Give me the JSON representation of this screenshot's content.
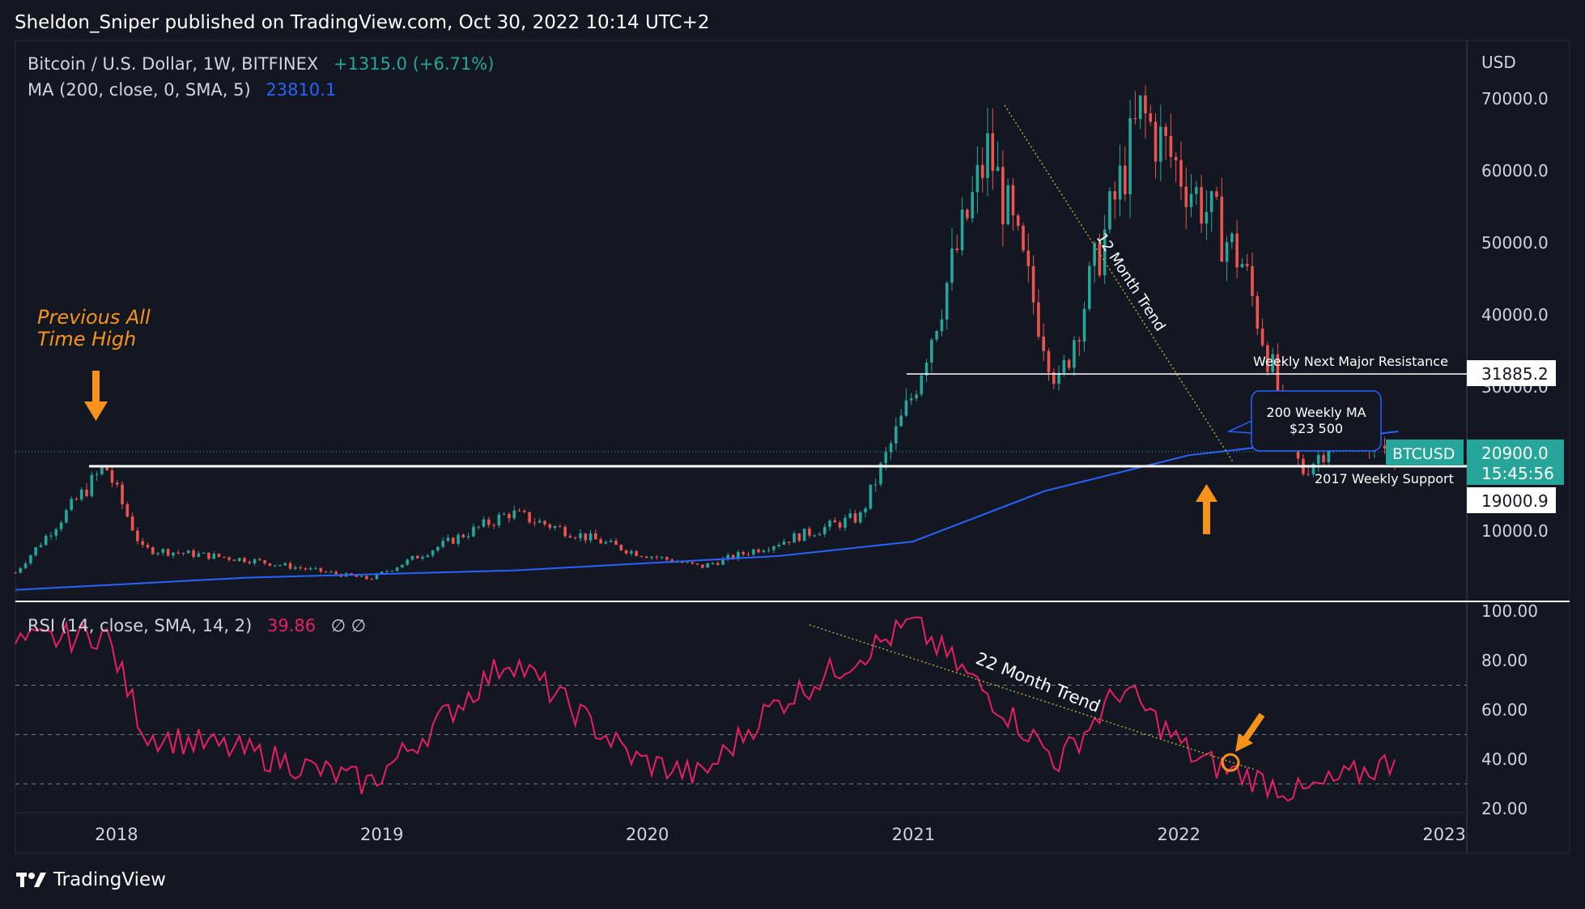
{
  "header": {
    "published_by": "Sheldon_Sniper published on TradingView.com, Oct 30, 2022 10:14 UTC+2"
  },
  "legend": {
    "symbol": "Bitcoin / U.S. Dollar, 1W, BITFINEX",
    "change": "+1315.0 (+6.71%)",
    "ma_label": "MA (200, close, 0, SMA, 5)",
    "ma_value": "23810.1",
    "rsi_label": "RSI (14, close, SMA, 14, 2)",
    "rsi_value": "39.86",
    "rsi_extra": "∅  ∅"
  },
  "price_axis": {
    "currency": "USD",
    "ticks": [
      "70000.0",
      "60000.0",
      "50000.0",
      "40000.0",
      "30000.0",
      "10000.0"
    ],
    "resistance_label": "31885.2",
    "btc_symbol": "BTCUSD",
    "btc_price": "20900.0",
    "btc_countdown": "15:45:56",
    "support_label": "19000.9"
  },
  "rsi_axis": {
    "ticks": [
      "100.00",
      "80.00",
      "60.00",
      "40.00",
      "20.00"
    ]
  },
  "time_axis": {
    "ticks": [
      "2018",
      "2019",
      "2020",
      "2021",
      "2022",
      "2023"
    ]
  },
  "annotations": {
    "previous_ath_line1": "Previous All",
    "previous_ath_line2": "Time High",
    "twelve_month_trend": "12 Month Trend",
    "weekly_resistance": "Weekly Next Major Resistance",
    "ma_callout_line1": "200 Weekly MA",
    "ma_callout_line2": "$23 500",
    "weekly_support": "2017 Weekly Support",
    "twenty_two_month_trend": "22 Month Trend"
  },
  "footer": {
    "brand": "TradingView"
  },
  "colors": {
    "background": "#131722",
    "up": "#26a69a",
    "down": "#ef5350",
    "ma": "#2962ff",
    "rsi": "#e91e63",
    "annotation_orange": "#f7931a"
  },
  "chart_data": [
    {
      "type": "candlestick",
      "title": "Bitcoin / U.S. Dollar, 1W, BITFINEX",
      "ylabel": "USD",
      "ylim": [
        0,
        72000
      ],
      "x_range": [
        "2017-08-15",
        "2023-02-01"
      ],
      "key_points": [
        {
          "date": "2017-08-15",
          "price": 4200
        },
        {
          "date": "2017-12-17",
          "price": 19000
        },
        {
          "date": "2018-02-05",
          "price": 7500
        },
        {
          "date": "2018-06-30",
          "price": 6000
        },
        {
          "date": "2018-12-15",
          "price": 3300
        },
        {
          "date": "2019-06-26",
          "price": 12500
        },
        {
          "date": "2019-12-15",
          "price": 7000
        },
        {
          "date": "2020-03-15",
          "price": 5000
        },
        {
          "date": "2020-10-20",
          "price": 12000
        },
        {
          "date": "2020-12-31",
          "price": 29000
        },
        {
          "date": "2021-04-14",
          "price": 63000
        },
        {
          "date": "2021-07-20",
          "price": 30000
        },
        {
          "date": "2021-11-10",
          "price": 68000
        },
        {
          "date": "2022-03-30",
          "price": 47000
        },
        {
          "date": "2022-06-18",
          "price": 18000
        },
        {
          "date": "2022-08-15",
          "price": 24000
        },
        {
          "date": "2022-10-30",
          "price": 20900
        }
      ],
      "series": [
        {
          "name": "MA (200, close, 0, SMA, 5)",
          "points": [
            {
              "date": "2017-08-15",
              "value": 1800
            },
            {
              "date": "2018-06-30",
              "value": 3500
            },
            {
              "date": "2019-06-30",
              "value": 4500
            },
            {
              "date": "2020-06-30",
              "value": 6500
            },
            {
              "date": "2020-12-31",
              "value": 8500
            },
            {
              "date": "2021-06-30",
              "value": 15500
            },
            {
              "date": "2022-01-15",
              "value": 20500
            },
            {
              "date": "2022-10-30",
              "value": 23800
            }
          ]
        }
      ],
      "horizontal_levels": [
        {
          "label": "Weekly Next Major Resistance",
          "value": 31885.2
        },
        {
          "label": "2017 Weekly Support",
          "value": 19000.9
        }
      ],
      "trend_line": {
        "label": "12 Month Trend",
        "from": {
          "date": "2021-11-10",
          "value": 69000
        },
        "to": {
          "date": "2022-10-25",
          "value": 20000
        }
      }
    },
    {
      "type": "line",
      "title": "RSI (14, close, SMA, 14, 2)",
      "ylim": [
        20,
        100
      ],
      "guides": [
        70,
        50,
        30
      ],
      "series": [
        {
          "name": "RSI",
          "points": [
            {
              "date": "2017-08-15",
              "value": 87
            },
            {
              "date": "2017-12-17",
              "value": 91
            },
            {
              "date": "2018-02-10",
              "value": 50
            },
            {
              "date": "2018-07-01",
              "value": 43
            },
            {
              "date": "2018-12-15",
              "value": 30
            },
            {
              "date": "2019-06-26",
              "value": 81
            },
            {
              "date": "2019-12-15",
              "value": 40
            },
            {
              "date": "2020-03-15",
              "value": 33
            },
            {
              "date": "2020-06-15",
              "value": 60
            },
            {
              "date": "2020-12-31",
              "value": 95
            },
            {
              "date": "2021-07-20",
              "value": 39
            },
            {
              "date": "2021-10-15",
              "value": 69
            },
            {
              "date": "2022-01-25",
              "value": 40
            },
            {
              "date": "2022-06-18",
              "value": 26
            },
            {
              "date": "2022-10-30",
              "value": 39.86
            }
          ]
        }
      ],
      "trend_line": {
        "label": "22 Month Trend",
        "from": {
          "date": "2020-12-31",
          "value": 95
        },
        "to": {
          "date": "2022-12-01",
          "value": 36
        }
      }
    }
  ]
}
